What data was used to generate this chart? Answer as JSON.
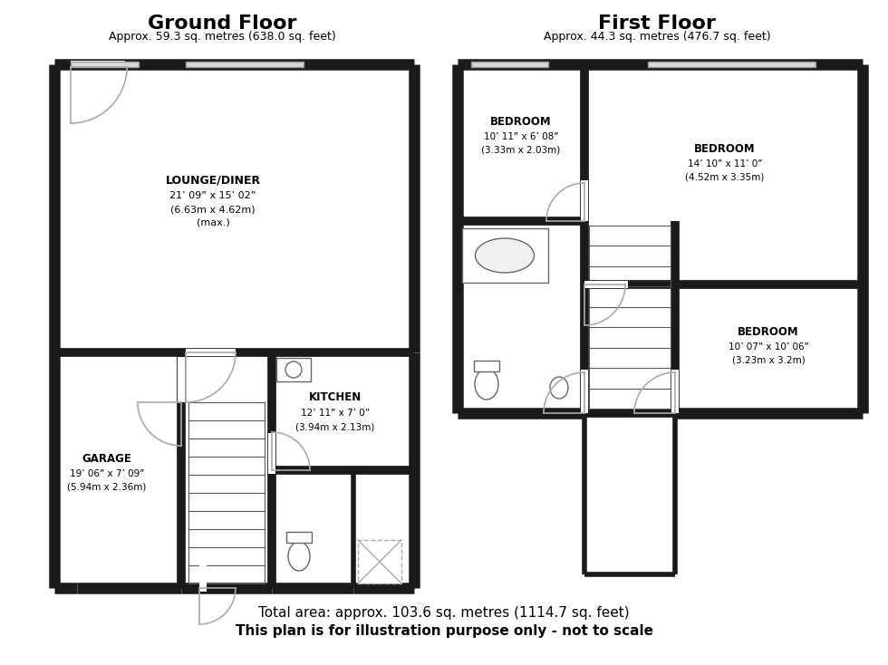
{
  "bg_color": "#ffffff",
  "wall_color": "#1a1a1a",
  "light_gray": "#cccccc",
  "mid_gray": "#aaaaaa",
  "gf_title": "Ground Floor",
  "gf_subtitle": "Approx. 59.3 sq. metres (638.0 sq. feet)",
  "ff_title": "First Floor",
  "ff_subtitle": "Approx. 44.3 sq. metres (476.7 sq. feet)",
  "total_area": "Total area: approx. 103.6 sq. metres (1114.7 sq. feet)",
  "disclaimer": "This plan is for illustration purpose only - not to scale",
  "lounge_label": "LOUNGE/DINER",
  "lounge_dims1": "21’ 09” x 15’ 02”",
  "lounge_dims2": "(6.63m x 4.62m)",
  "lounge_dims3": "(max.)",
  "kitchen_label": "KITCHEN",
  "kitchen_dims1": "12’ 11” x 7’ 0”",
  "kitchen_dims2": "(3.94m x 2.13m)",
  "garage_label": "GARAGE",
  "garage_dims1": "19’ 06” x 7’ 09”",
  "garage_dims2": "(5.94m x 2.36m)",
  "bed1_label": "BEDROOM",
  "bed1_dims1": "10’ 11” x 6’ 08”",
  "bed1_dims2": "(3.33m x 2.03m)",
  "bed2_label": "BEDROOM",
  "bed2_dims1": "14’ 10” x 11’ 0”",
  "bed2_dims2": "(4.52m x 3.35m)",
  "bed3_label": "BEDROOM",
  "bed3_dims1": "10’ 07” x 10’ 06”",
  "bed3_dims2": "(3.23m x 3.2m)"
}
